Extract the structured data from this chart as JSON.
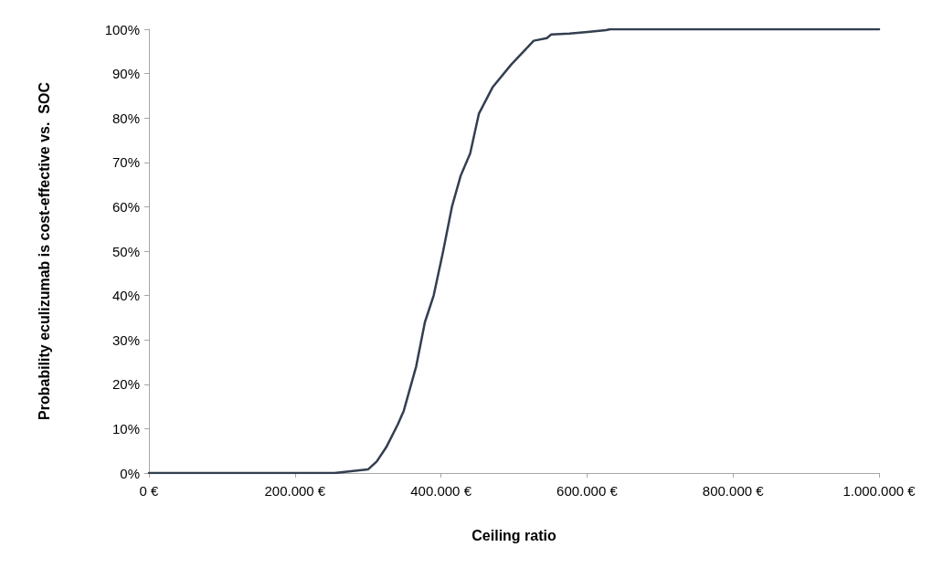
{
  "chart_data": {
    "type": "line",
    "xlabel": "Ceiling ratio",
    "ylabel": "Probability eculizumab is cost-effective vs.  SOC",
    "xlim": [
      0,
      1000000
    ],
    "ylim": [
      0,
      100
    ],
    "xticks": [
      {
        "value": 0,
        "label": "0 €"
      },
      {
        "value": 200000,
        "label": "200.000 €"
      },
      {
        "value": 400000,
        "label": "400.000 €"
      },
      {
        "value": 600000,
        "label": "600.000 €"
      },
      {
        "value": 800000,
        "label": "800.000 €"
      },
      {
        "value": 1000000,
        "label": "1.000.000 €"
      }
    ],
    "yticks": [
      {
        "value": 0,
        "label": "0%"
      },
      {
        "value": 10,
        "label": "10%"
      },
      {
        "value": 20,
        "label": "20%"
      },
      {
        "value": 30,
        "label": "30%"
      },
      {
        "value": 40,
        "label": "40%"
      },
      {
        "value": 50,
        "label": "50%"
      },
      {
        "value": 60,
        "label": "60%"
      },
      {
        "value": 70,
        "label": "70%"
      },
      {
        "value": 80,
        "label": "80%"
      },
      {
        "value": 90,
        "label": "90%"
      },
      {
        "value": 100,
        "label": "100%"
      }
    ],
    "grid": false,
    "marker": "none",
    "line_style": "solid",
    "series": [
      {
        "color": "#333f50",
        "x": [
          0,
          130000,
          254000,
          300000,
          312000,
          325000,
          341000,
          349000,
          366000,
          378000,
          390000,
          403000,
          415000,
          427000,
          440000,
          452000,
          471000,
          496000,
          527000,
          545000,
          551000,
          576000,
          601000,
          626000,
          632000,
          1000000
        ],
        "values": [
          0,
          0,
          0,
          0.8,
          2.6,
          5.8,
          11,
          14,
          24,
          34,
          40,
          50,
          60,
          67,
          72,
          81,
          87,
          92,
          97.4,
          98,
          98.8,
          99,
          99.4,
          99.8,
          100,
          100
        ]
      }
    ]
  }
}
